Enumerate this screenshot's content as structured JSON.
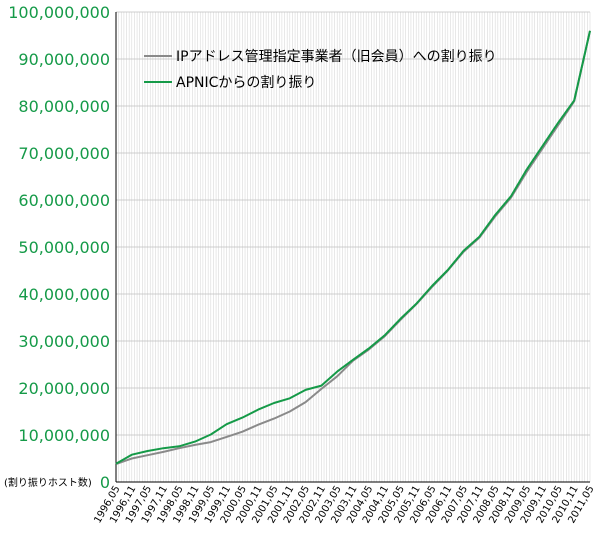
{
  "chart_data": {
    "type": "line",
    "title": "",
    "ylabel": "(割り振りホスト数)",
    "xlabel": "",
    "ylim": [
      0,
      100000000
    ],
    "yticks": [
      0,
      10000000,
      20000000,
      30000000,
      40000000,
      50000000,
      60000000,
      70000000,
      80000000,
      90000000,
      100000000
    ],
    "ytick_labels": [
      "0",
      "10,000,000",
      "20,000,000",
      "30,000,000",
      "40,000,000",
      "50,000,000",
      "60,000,000",
      "70,000,000",
      "80,000,000",
      "90,000,000",
      "100,000,000"
    ],
    "ytick_color": "#159a48",
    "categories": [
      "1996,05",
      "1996,11",
      "1997,05",
      "1997,11",
      "1998,05",
      "1998,11",
      "1999,05",
      "1999,11",
      "2000,05",
      "2000,11",
      "2001,05",
      "2001,11",
      "2002,05",
      "2002,11",
      "2003,05",
      "2003,11",
      "2004,05",
      "2004,11",
      "2005,05",
      "2005,11",
      "2006,05",
      "2006,11",
      "2007,05",
      "2007,11",
      "2008,05",
      "2008,11",
      "2009,05",
      "2009,11",
      "2010,05",
      "2010,11",
      "2011,05"
    ],
    "grid": true,
    "legend_position": "top-left",
    "series": [
      {
        "name": "IPアドレス管理指定事業者（旧会員）への割り振り",
        "color": "#8a8a8a",
        "values": [
          3800000,
          5000000,
          5700000,
          6400000,
          7200000,
          7900000,
          8500000,
          9600000,
          10700000,
          12200000,
          13500000,
          15000000,
          17000000,
          19800000,
          22500000,
          25800000,
          28200000,
          31000000,
          34500000,
          37800000,
          41500000,
          45000000,
          49000000,
          52000000,
          56500000,
          60500000,
          66000000,
          71000000,
          76000000,
          81000000,
          96000000
        ]
      },
      {
        "name": "APNICからの割り振り",
        "color": "#159a48",
        "values": [
          3900000,
          5800000,
          6600000,
          7200000,
          7600000,
          8600000,
          10100000,
          12300000,
          13700000,
          15400000,
          16800000,
          17800000,
          19600000,
          20500000,
          23500000,
          26000000,
          28400000,
          31200000,
          34700000,
          37900000,
          41700000,
          45100000,
          49200000,
          52200000,
          56800000,
          60800000,
          66500000,
          71500000,
          76500000,
          81200000,
          96000000
        ]
      }
    ]
  }
}
